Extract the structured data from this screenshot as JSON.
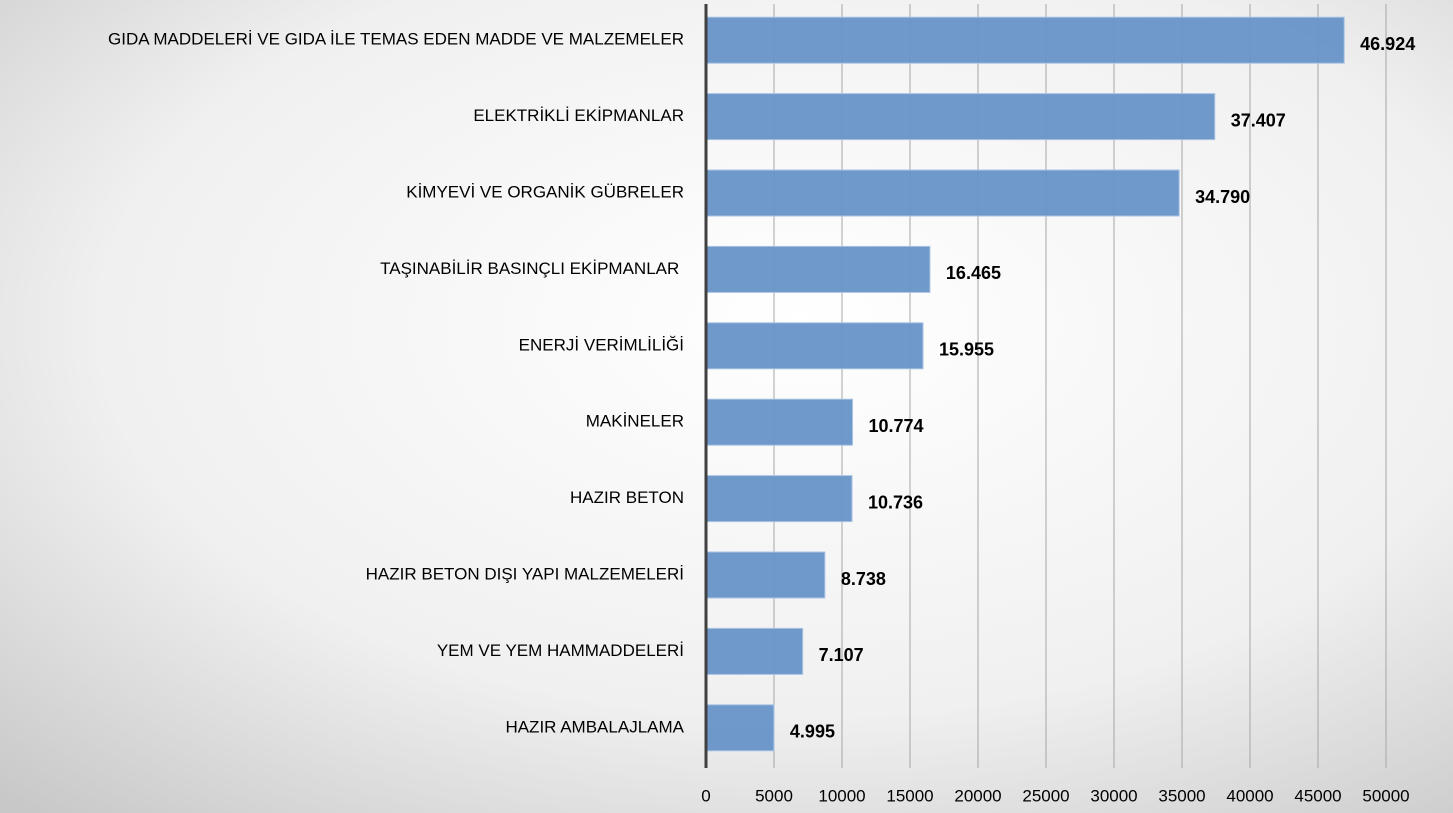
{
  "chart_data": {
    "type": "bar",
    "orientation": "horizontal",
    "categories": [
      "GIDA MADDELERİ VE GIDA İLE TEMAS EDEN MADDE VE MALZEMELER",
      "ELEKTRİKLİ EKİPMANLAR",
      "KİMYEVİ VE ORGANİK GÜBRELER",
      "TAŞINABİLİR BASINÇLI EKİPMANLAR ",
      "ENERJİ VERİMLİLİĞİ",
      "MAKİNELER",
      "HAZIR BETON",
      "HAZIR BETON DIŞI YAPI MALZEMELERİ",
      "YEM VE YEM HAMMADDELERİ",
      "HAZIR AMBALAJLAMA"
    ],
    "values": [
      46924,
      37407,
      34790,
      16465,
      15955,
      10774,
      10736,
      8738,
      7107,
      4995
    ],
    "value_labels": [
      "46.924",
      "37.407",
      "34.790",
      "16.465",
      "15.955",
      "10.774",
      "10.736",
      "8.738",
      "7.107",
      "4.995"
    ],
    "color": "#6794c8",
    "xlim": [
      0,
      50000
    ],
    "xticks": [
      0,
      5000,
      10000,
      15000,
      20000,
      25000,
      30000,
      35000,
      40000,
      45000,
      50000
    ],
    "grid": true
  }
}
